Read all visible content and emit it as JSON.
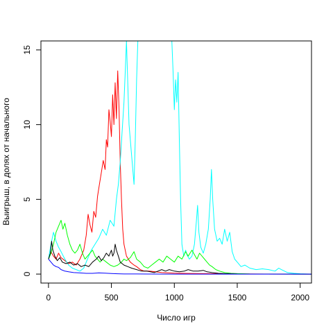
{
  "chart_data": {
    "type": "line",
    "title": "",
    "xlabel": "Число игр",
    "ylabel": "Выигрыш, в долях от начального",
    "xlim": [
      -60,
      2090
    ],
    "ylim": [
      -0.6,
      15.6
    ],
    "x_ticks": [
      0,
      500,
      1000,
      1500,
      2000
    ],
    "y_ticks": [
      0,
      5,
      10,
      15
    ],
    "grid": false,
    "legend": "none",
    "series": [
      {
        "color": "#ff0000",
        "points": [
          [
            0,
            1
          ],
          [
            20,
            1.5
          ],
          [
            40,
            1.2
          ],
          [
            60,
            1.0
          ],
          [
            80,
            1.4
          ],
          [
            100,
            1.1
          ],
          [
            130,
            0.9
          ],
          [
            160,
            0.7
          ],
          [
            190,
            0.8
          ],
          [
            220,
            0.6
          ],
          [
            250,
            1.0
          ],
          [
            280,
            1.6
          ],
          [
            300,
            2.6
          ],
          [
            315,
            4.0
          ],
          [
            330,
            3.3
          ],
          [
            345,
            2.8
          ],
          [
            360,
            4.2
          ],
          [
            375,
            3.8
          ],
          [
            390,
            5.2
          ],
          [
            405,
            6.0
          ],
          [
            420,
            6.8
          ],
          [
            435,
            7.6
          ],
          [
            450,
            7.0
          ],
          [
            460,
            9.0
          ],
          [
            470,
            8.5
          ],
          [
            480,
            11.0
          ],
          [
            490,
            10.2
          ],
          [
            500,
            9.2
          ],
          [
            510,
            12.0
          ],
          [
            520,
            10.0
          ],
          [
            530,
            12.8
          ],
          [
            540,
            10.4
          ],
          [
            550,
            13.6
          ],
          [
            560,
            11.2
          ],
          [
            570,
            7.5
          ],
          [
            580,
            5.0
          ],
          [
            590,
            3.0
          ],
          [
            600,
            2.0
          ],
          [
            620,
            1.2
          ],
          [
            650,
            0.8
          ],
          [
            680,
            0.6
          ],
          [
            700,
            0.5
          ],
          [
            730,
            0.3
          ],
          [
            760,
            0.2
          ],
          [
            800,
            0.2
          ],
          [
            850,
            0.15
          ],
          [
            900,
            0.1
          ],
          [
            1000,
            0.06
          ],
          [
            1200,
            0.03
          ],
          [
            1600,
            0.01
          ],
          [
            2090,
            0
          ]
        ]
      },
      {
        "color": "#00ffff",
        "points": [
          [
            0,
            1
          ],
          [
            20,
            2.0
          ],
          [
            40,
            2.8
          ],
          [
            60,
            2.2
          ],
          [
            80,
            1.8
          ],
          [
            100,
            1.5
          ],
          [
            130,
            1.0
          ],
          [
            160,
            0.6
          ],
          [
            190,
            0.4
          ],
          [
            220,
            0.3
          ],
          [
            250,
            0.2
          ],
          [
            280,
            0.4
          ],
          [
            310,
            1.0
          ],
          [
            340,
            1.6
          ],
          [
            370,
            2.0
          ],
          [
            400,
            2.4
          ],
          [
            430,
            3.0
          ],
          [
            460,
            2.6
          ],
          [
            490,
            3.6
          ],
          [
            520,
            3.2
          ],
          [
            540,
            5.0
          ],
          [
            555,
            6.0
          ],
          [
            570,
            7.5
          ],
          [
            585,
            9.5
          ],
          [
            600,
            11.5
          ],
          [
            610,
            13.5
          ],
          [
            620,
            15.6
          ],
          [
            640,
            10.0
          ],
          [
            660,
            8.0
          ],
          [
            670,
            7.0
          ],
          [
            680,
            6.0
          ],
          [
            690,
            9.0
          ],
          [
            700,
            13.0
          ],
          [
            710,
            15.6
          ],
          [
            730,
            15.6
          ],
          [
            760,
            15.6
          ],
          [
            800,
            15.6
          ],
          [
            850,
            15.6
          ],
          [
            900,
            15.6
          ],
          [
            950,
            15.6
          ],
          [
            980,
            15.6
          ],
          [
            990,
            13.5
          ],
          [
            1000,
            11.0
          ],
          [
            1010,
            13.0
          ],
          [
            1020,
            11.5
          ],
          [
            1030,
            13.5
          ],
          [
            1040,
            9.0
          ],
          [
            1050,
            5.0
          ],
          [
            1060,
            2.0
          ],
          [
            1075,
            1.2
          ],
          [
            1090,
            1.6
          ],
          [
            1100,
            1.3
          ],
          [
            1120,
            1.0
          ],
          [
            1140,
            1.2
          ],
          [
            1160,
            2.0
          ],
          [
            1175,
            3.5
          ],
          [
            1185,
            4.6
          ],
          [
            1195,
            2.8
          ],
          [
            1210,
            1.8
          ],
          [
            1230,
            1.4
          ],
          [
            1250,
            2.0
          ],
          [
            1270,
            3.0
          ],
          [
            1285,
            5.0
          ],
          [
            1295,
            7.0
          ],
          [
            1305,
            5.0
          ],
          [
            1320,
            3.0
          ],
          [
            1340,
            2.2
          ],
          [
            1360,
            2.4
          ],
          [
            1380,
            2.0
          ],
          [
            1400,
            3.0
          ],
          [
            1420,
            2.2
          ],
          [
            1440,
            2.8
          ],
          [
            1460,
            1.5
          ],
          [
            1480,
            1.0
          ],
          [
            1500,
            0.8
          ],
          [
            1530,
            0.5
          ],
          [
            1560,
            0.6
          ],
          [
            1600,
            0.4
          ],
          [
            1650,
            0.3
          ],
          [
            1700,
            0.35
          ],
          [
            1750,
            0.3
          ],
          [
            1800,
            0.2
          ],
          [
            1830,
            0.4
          ],
          [
            1850,
            0.3
          ],
          [
            1900,
            0.1
          ],
          [
            1950,
            0.05
          ],
          [
            2000,
            0.02
          ],
          [
            2090,
            0
          ]
        ]
      },
      {
        "color": "#00ff00",
        "points": [
          [
            0,
            1
          ],
          [
            20,
            1.4
          ],
          [
            40,
            2.0
          ],
          [
            60,
            2.8
          ],
          [
            80,
            3.2
          ],
          [
            100,
            3.6
          ],
          [
            115,
            3.0
          ],
          [
            130,
            3.4
          ],
          [
            150,
            2.6
          ],
          [
            170,
            2.0
          ],
          [
            190,
            1.6
          ],
          [
            210,
            1.4
          ],
          [
            230,
            1.6
          ],
          [
            250,
            2.0
          ],
          [
            270,
            1.4
          ],
          [
            290,
            1.0
          ],
          [
            310,
            1.2
          ],
          [
            330,
            1.4
          ],
          [
            350,
            1.6
          ],
          [
            370,
            1.2
          ],
          [
            390,
            1.0
          ],
          [
            410,
            0.8
          ],
          [
            430,
            1.0
          ],
          [
            460,
            0.8
          ],
          [
            490,
            0.6
          ],
          [
            520,
            0.5
          ],
          [
            550,
            0.6
          ],
          [
            580,
            0.8
          ],
          [
            600,
            1.0
          ],
          [
            620,
            0.9
          ],
          [
            650,
            1.1
          ],
          [
            680,
            1.5
          ],
          [
            700,
            1.0
          ],
          [
            730,
            0.8
          ],
          [
            760,
            0.5
          ],
          [
            790,
            0.4
          ],
          [
            820,
            0.6
          ],
          [
            850,
            0.8
          ],
          [
            880,
            1.0
          ],
          [
            910,
            0.8
          ],
          [
            940,
            1.2
          ],
          [
            970,
            1.0
          ],
          [
            1000,
            0.8
          ],
          [
            1030,
            1.2
          ],
          [
            1060,
            1.0
          ],
          [
            1090,
            1.5
          ],
          [
            1110,
            1.2
          ],
          [
            1140,
            1.6
          ],
          [
            1160,
            1.3
          ],
          [
            1180,
            1.0
          ],
          [
            1200,
            1.4
          ],
          [
            1220,
            1.2
          ],
          [
            1240,
            1.0
          ],
          [
            1260,
            0.8
          ],
          [
            1280,
            0.6
          ],
          [
            1300,
            0.5
          ],
          [
            1330,
            0.3
          ],
          [
            1360,
            0.2
          ],
          [
            1400,
            0.1
          ],
          [
            1450,
            0.05
          ],
          [
            1500,
            0.03
          ],
          [
            1600,
            0.01
          ],
          [
            2090,
            0
          ]
        ]
      },
      {
        "color": "#000000",
        "points": [
          [
            0,
            1
          ],
          [
            15,
            1.4
          ],
          [
            25,
            2.2
          ],
          [
            35,
            1.6
          ],
          [
            50,
            1.2
          ],
          [
            70,
            0.9
          ],
          [
            90,
            1.1
          ],
          [
            110,
            0.8
          ],
          [
            140,
            0.7
          ],
          [
            170,
            0.8
          ],
          [
            200,
            0.6
          ],
          [
            230,
            0.7
          ],
          [
            260,
            0.5
          ],
          [
            290,
            0.6
          ],
          [
            320,
            0.5
          ],
          [
            350,
            0.8
          ],
          [
            380,
            1.0
          ],
          [
            400,
            1.2
          ],
          [
            420,
            0.9
          ],
          [
            440,
            1.1
          ],
          [
            460,
            1.4
          ],
          [
            480,
            1.2
          ],
          [
            500,
            1.6
          ],
          [
            510,
            1.2
          ],
          [
            520,
            1.4
          ],
          [
            530,
            2.0
          ],
          [
            540,
            1.6
          ],
          [
            555,
            1.2
          ],
          [
            570,
            0.8
          ],
          [
            600,
            0.6
          ],
          [
            630,
            0.5
          ],
          [
            660,
            0.4
          ],
          [
            700,
            0.3
          ],
          [
            740,
            0.2
          ],
          [
            780,
            0.2
          ],
          [
            810,
            0.15
          ],
          [
            840,
            0.1
          ],
          [
            870,
            0.2
          ],
          [
            900,
            0.3
          ],
          [
            930,
            0.2
          ],
          [
            960,
            0.3
          ],
          [
            1000,
            0.2
          ],
          [
            1040,
            0.15
          ],
          [
            1080,
            0.2
          ],
          [
            1110,
            0.3
          ],
          [
            1150,
            0.2
          ],
          [
            1190,
            0.2
          ],
          [
            1230,
            0.25
          ],
          [
            1260,
            0.15
          ],
          [
            1300,
            0.1
          ],
          [
            1350,
            0.05
          ],
          [
            1400,
            0.03
          ],
          [
            1500,
            0.01
          ],
          [
            2090,
            0
          ]
        ]
      },
      {
        "color": "#0000ff",
        "points": [
          [
            0,
            1
          ],
          [
            20,
            0.8
          ],
          [
            40,
            0.6
          ],
          [
            60,
            0.5
          ],
          [
            80,
            0.45
          ],
          [
            100,
            0.3
          ],
          [
            130,
            0.2
          ],
          [
            160,
            0.15
          ],
          [
            200,
            0.1
          ],
          [
            250,
            0.08
          ],
          [
            300,
            0.05
          ],
          [
            350,
            0.05
          ],
          [
            400,
            0.08
          ],
          [
            450,
            0.06
          ],
          [
            500,
            0.04
          ],
          [
            550,
            0.02
          ],
          [
            600,
            0.01
          ],
          [
            700,
            0.01
          ],
          [
            800,
            0.005
          ],
          [
            1000,
            0
          ],
          [
            2090,
            0
          ]
        ]
      }
    ]
  }
}
